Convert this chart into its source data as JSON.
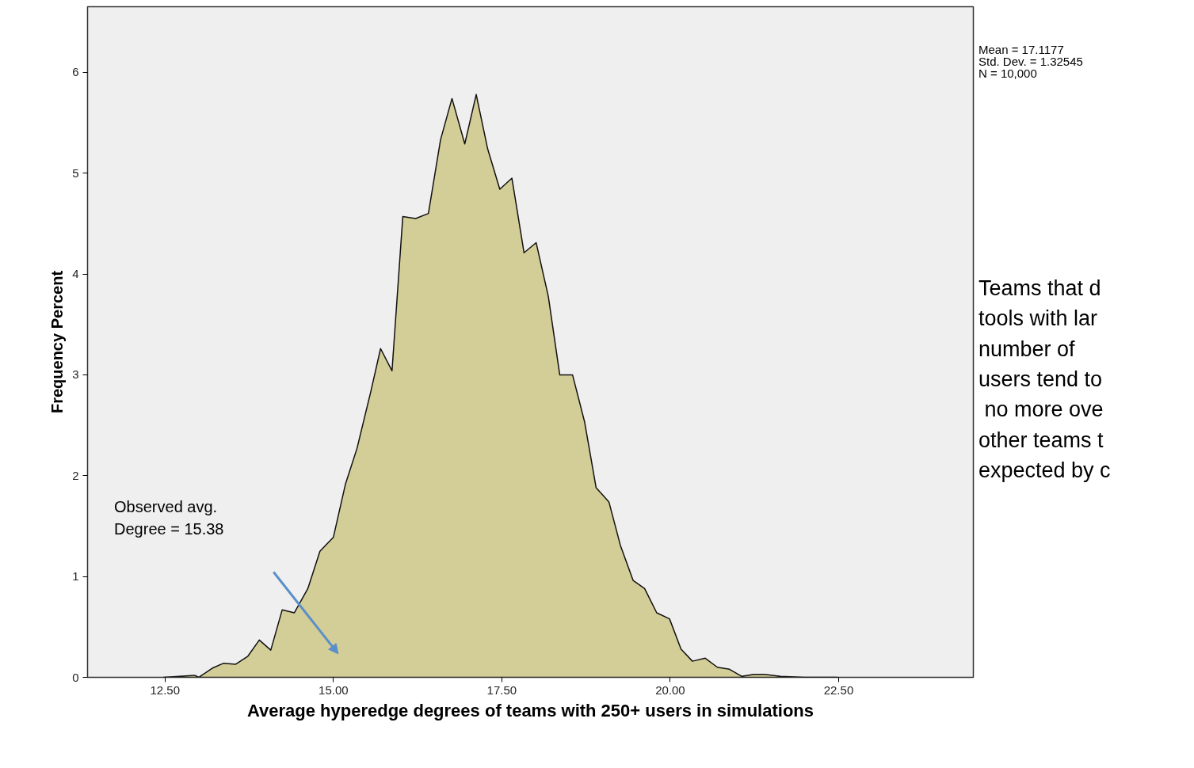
{
  "chart_data": {
    "type": "area",
    "xlabel": "Average hyperedge degrees of teams with 250+ users in simulations",
    "ylabel": "Frequency Percent",
    "x": [
      12.48,
      12.94,
      13.0,
      13.2,
      13.37,
      13.55,
      13.73,
      13.9,
      14.07,
      14.24,
      14.42,
      14.62,
      14.8,
      15.0,
      15.18,
      15.35,
      15.55,
      15.7,
      15.87,
      16.03,
      16.22,
      16.41,
      16.59,
      16.76,
      16.95,
      17.12,
      17.29,
      17.47,
      17.65,
      17.83,
      18.01,
      18.19,
      18.36,
      18.55,
      18.73,
      18.9,
      19.09,
      19.26,
      19.45,
      19.62,
      19.8,
      19.99,
      20.16,
      20.33,
      20.52,
      20.7,
      20.88,
      21.06,
      21.24,
      21.4,
      21.64,
      21.99,
      22.48
    ],
    "series": [
      {
        "color": "#d3cd97",
        "values": [
          0,
          0.02,
          0,
          0.09,
          0.14,
          0.13,
          0.21,
          0.37,
          0.27,
          0.67,
          0.64,
          0.88,
          1.25,
          1.39,
          1.92,
          2.27,
          2.82,
          3.26,
          3.04,
          4.57,
          4.55,
          4.6,
          5.33,
          5.74,
          5.29,
          5.78,
          5.24,
          4.84,
          4.95,
          4.21,
          4.31,
          3.78,
          3.0,
          3.0,
          2.53,
          1.88,
          1.74,
          1.31,
          0.96,
          0.88,
          0.64,
          0.58,
          0.28,
          0.16,
          0.19,
          0.1,
          0.08,
          0.01,
          0.03,
          0.03,
          0.01,
          0,
          0
        ]
      }
    ],
    "xlim": [
      11.35,
      24.5
    ],
    "ylim": [
      0,
      6.65
    ],
    "xticks": [
      {
        "value": 12.5,
        "label": "12.50"
      },
      {
        "value": 15,
        "label": "15.00"
      },
      {
        "value": 17.5,
        "label": "17.50"
      },
      {
        "value": 20,
        "label": "20.00"
      },
      {
        "value": 22.5,
        "label": "22.50"
      }
    ],
    "yticks": [
      0,
      1,
      2,
      3,
      4,
      5,
      6
    ],
    "grid": false,
    "annotations": [
      "Observed avg.\nDegree = 15.38",
      "Mean = 17.1177\nStd. Dev. = 1.32545\nN = 10,000",
      "Teams that d\ntools with lar\nnumber of\nusers tend to\n no more ove\nother teams t\nexpected by c"
    ]
  }
}
